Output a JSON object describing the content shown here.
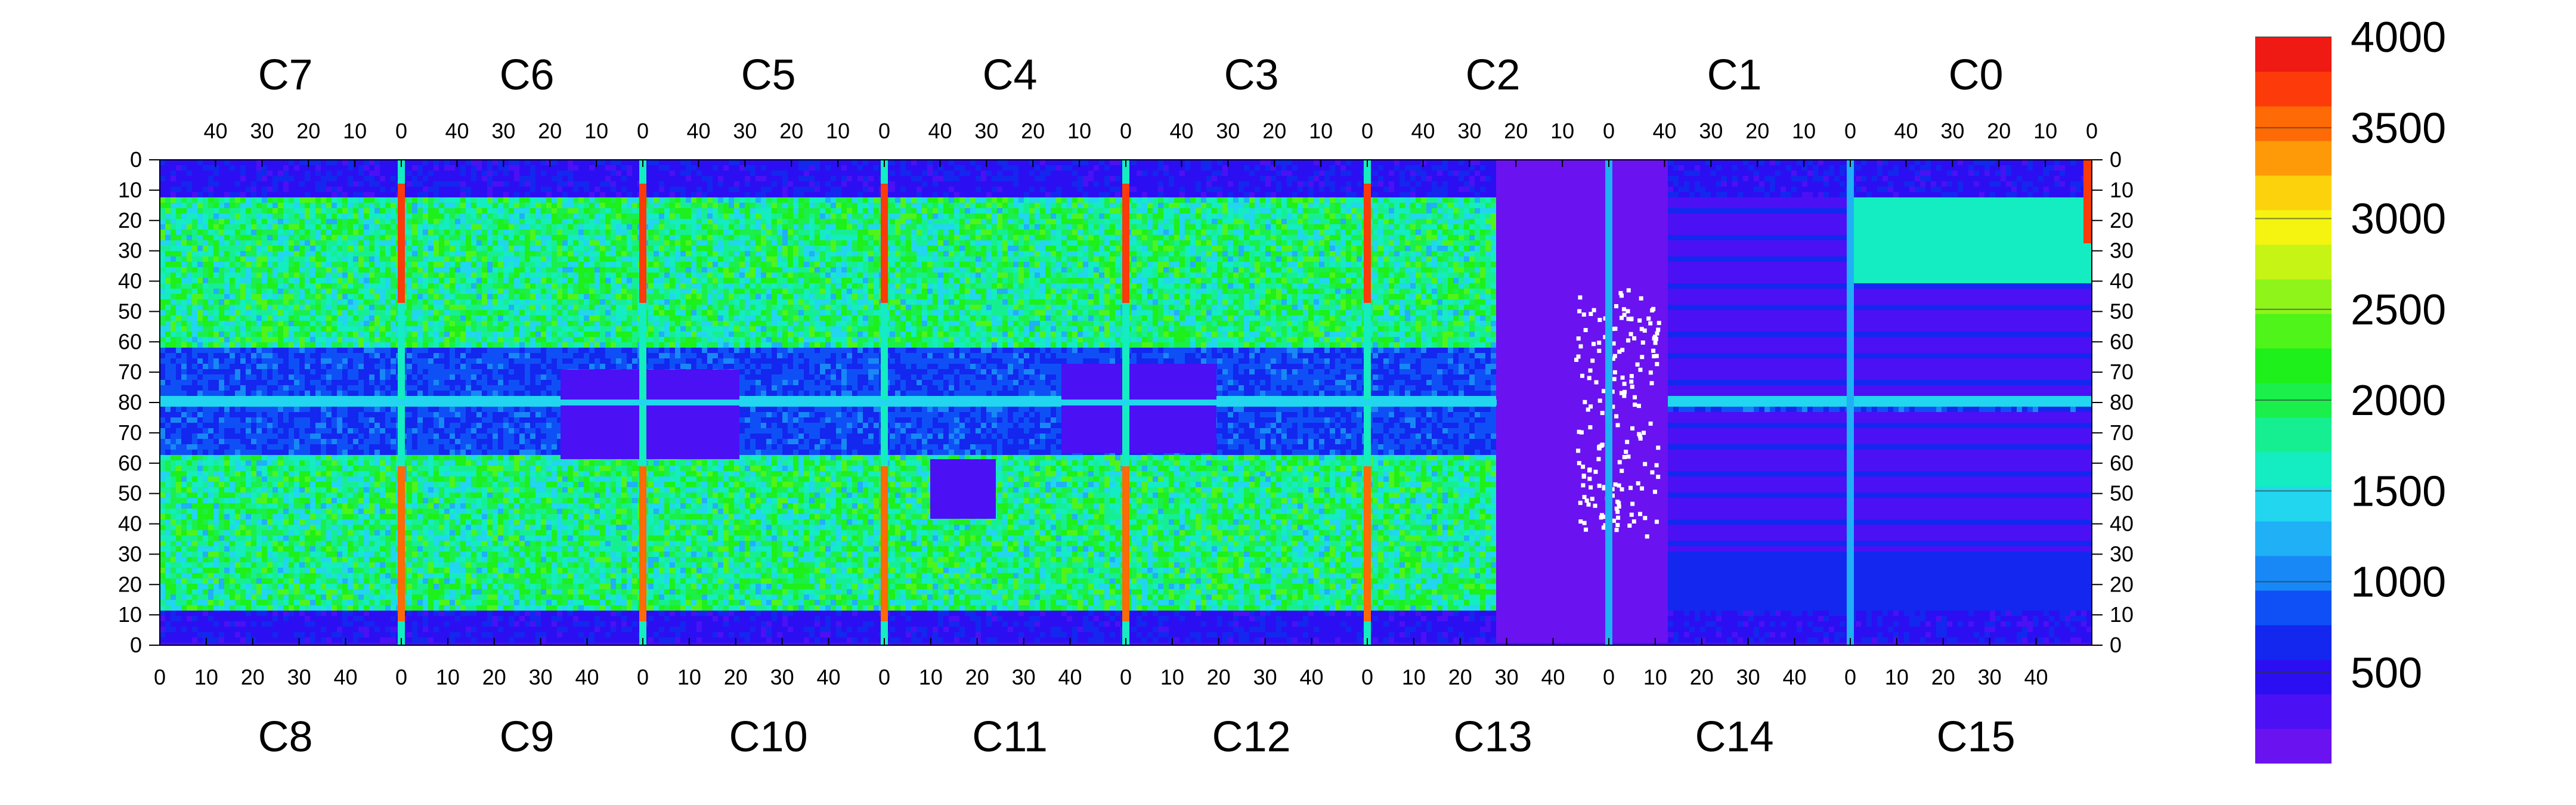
{
  "chart_data": {
    "type": "heatmap",
    "title": "",
    "xlabel": "",
    "ylabel": "",
    "chips_top": [
      "C7",
      "C6",
      "C5",
      "C4",
      "C3",
      "C2",
      "C1",
      "C0"
    ],
    "chips_bottom": [
      "C8",
      "C9",
      "C10",
      "C11",
      "C12",
      "C13",
      "C14",
      "C15"
    ],
    "x_ticks_top": [
      "40",
      "30",
      "20",
      "10",
      "0"
    ],
    "x_ticks_bottom": [
      "0",
      "10",
      "20",
      "30",
      "40"
    ],
    "y_ticks_top_half": [
      "0",
      "10",
      "20",
      "30",
      "40",
      "50",
      "60",
      "70",
      "80"
    ],
    "y_ticks_bottom_half": [
      "70",
      "60",
      "50",
      "40",
      "30",
      "20",
      "10",
      "0"
    ],
    "value_range": [
      0,
      4000
    ],
    "colorbar_ticks": [
      "500",
      "1000",
      "1500",
      "2000",
      "2500",
      "3000",
      "3500",
      "4000"
    ],
    "colorbar_colors": [
      "#6a12f0",
      "#4c10f5",
      "#2b0ff2",
      "#1327ef",
      "#0f50f6",
      "#1888f6",
      "#1fb0f6",
      "#21d6ee",
      "#14ecc1",
      "#16ef91",
      "#1aef4c",
      "#1df01a",
      "#4ef41a",
      "#8ef41a",
      "#c6f414",
      "#f4f410",
      "#fcd20c",
      "#fe9a08",
      "#fe6a05",
      "#fd3b0a",
      "#ef1a14"
    ],
    "regions": [
      {
        "band": "top",
        "rows": [
          13,
          62
        ],
        "level": 1700
      },
      {
        "band": "top",
        "rows": [
          63,
          80
        ],
        "level": 750
      },
      {
        "band": "bottom",
        "rows": [
          13,
          62
        ],
        "level": 1600
      },
      {
        "band": "bottom",
        "rows": [
          63,
          80
        ],
        "level": 650
      },
      {
        "band": "edges",
        "rows": [
          0,
          12
        ],
        "level": 350
      },
      {
        "band": "chip-boundary",
        "rows": [
          0,
          80
        ],
        "level": 3700
      },
      {
        "band": "middle",
        "rows": [
          79,
          81
        ],
        "level": 1500
      },
      {
        "band": "C13-C14 right region",
        "rows": [
          0,
          80
        ],
        "level": 150
      }
    ]
  },
  "colorbar": {
    "label": ""
  }
}
